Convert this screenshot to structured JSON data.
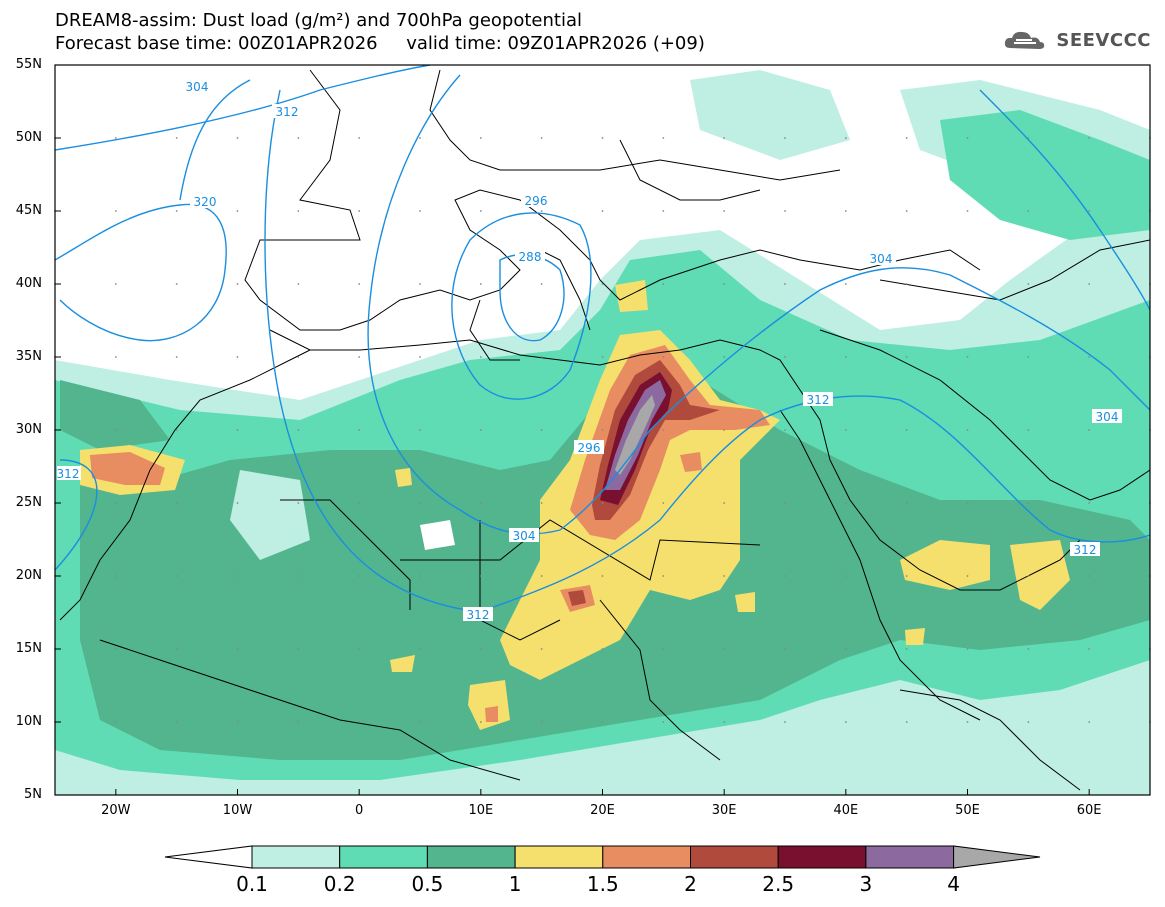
{
  "header": {
    "title_line1": "DREAM8-assim: Dust load (g/m²) and 700hPa geopotential",
    "title_line2": "Forecast base time: 00Z01APR2026     valid time: 09Z01APR2026 (+09)"
  },
  "logo": {
    "icon": "cloud-logo-icon",
    "text": "SEEVCCC"
  },
  "axes": {
    "lat_labels": [
      "55N",
      "50N",
      "45N",
      "40N",
      "35N",
      "30N",
      "25N",
      "20N",
      "15N",
      "10N",
      "5N"
    ],
    "lon_labels": [
      "20W",
      "10W",
      "0",
      "10E",
      "20E",
      "30E",
      "40E",
      "50E",
      "60E"
    ],
    "lat_range": [
      5,
      55
    ],
    "lon_range": [
      -25,
      65
    ]
  },
  "contour_labels": [
    "304",
    "312",
    "320",
    "296",
    "288",
    "304",
    "312",
    "296",
    "304",
    "312",
    "312",
    "304",
    "312"
  ],
  "colorbar": {
    "ticks": [
      "0.1",
      "0.2",
      "0.5",
      "1",
      "1.5",
      "2",
      "2.5",
      "3",
      "4"
    ],
    "colors": [
      "#bfeee3",
      "#5fdcb4",
      "#52b58e",
      "#f5e06e",
      "#e88c62",
      "#b04a3c",
      "#7a1030",
      "#8c6aa0",
      "#a8a8a8"
    ]
  }
}
